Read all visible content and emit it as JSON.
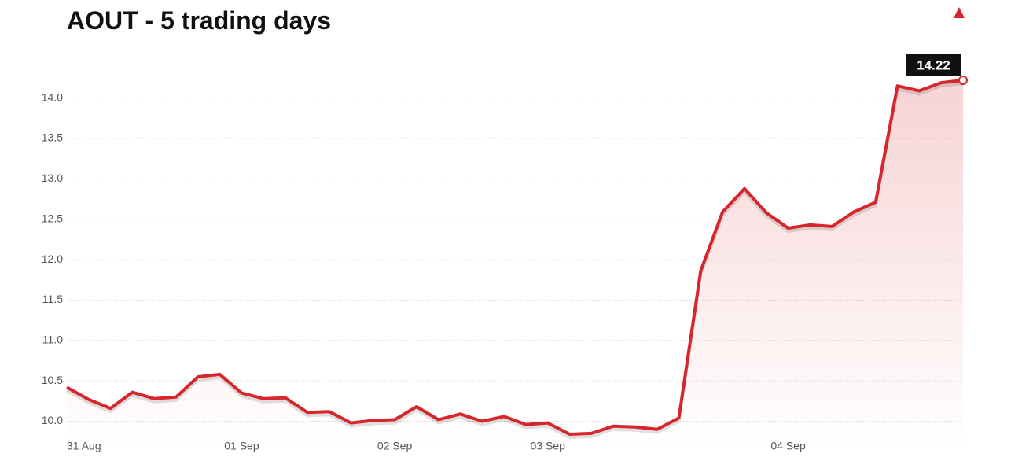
{
  "chart_data": {
    "type": "line",
    "title": "AOUT - 5 trading days",
    "categories": [
      "31 Aug",
      null,
      null,
      null,
      null,
      null,
      null,
      null,
      "01 Sep",
      null,
      null,
      null,
      null,
      null,
      null,
      "02 Sep",
      null,
      null,
      null,
      null,
      null,
      null,
      "03 Sep",
      null,
      null,
      null,
      null,
      null,
      null,
      null,
      null,
      null,
      null,
      "04 Sep",
      null,
      null,
      null,
      null,
      null,
      null,
      null,
      null
    ],
    "values": [
      10.42,
      10.27,
      10.16,
      10.36,
      10.28,
      10.3,
      10.55,
      10.58,
      10.35,
      10.28,
      10.29,
      10.11,
      10.12,
      9.98,
      10.01,
      10.02,
      10.18,
      10.02,
      10.09,
      10.0,
      10.06,
      9.96,
      9.98,
      9.84,
      9.85,
      9.94,
      9.93,
      9.9,
      10.04,
      11.86,
      12.59,
      12.88,
      12.58,
      12.39,
      12.43,
      12.41,
      12.59,
      12.71,
      14.15,
      14.09,
      14.19,
      14.22
    ],
    "color": "#d7262b",
    "ylim": [
      9.83,
      14.22
    ],
    "yticks": [
      {
        "value": 10,
        "label": "10.0"
      },
      10.5,
      {
        "value": 11,
        "label": "11.0"
      },
      11.5,
      {
        "value": 12,
        "label": "12.0"
      },
      12.5,
      {
        "value": 13,
        "label": "13.0"
      },
      13.5,
      {
        "value": 14,
        "label": "14.0"
      }
    ],
    "grid": true
  }
}
